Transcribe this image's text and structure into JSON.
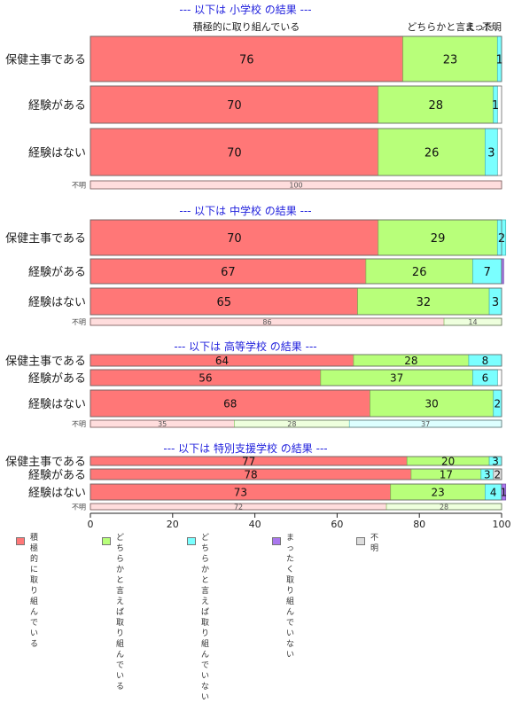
{
  "chart_data": {
    "type": "bar",
    "orientation": "horizontal",
    "stacked": true,
    "xlim": [
      0,
      100
    ],
    "x_ticks": [
      "0",
      "20",
      "40",
      "60",
      "80",
      "100"
    ],
    "top_header_labels": [
      "積極的に取り組んでいる",
      "どちらかと言え...",
      "まった..",
      "不明"
    ],
    "legend": [
      {
        "name": "積極的に\n取り組んでいる",
        "color": "#ff7777"
      },
      {
        "name": "どちらかと言えば\n取り組んでいる",
        "color": "#b8ff7a"
      },
      {
        "name": "どちらかと言えば\n取り組んでいない",
        "color": "#7affff"
      },
      {
        "name": "まったく\n取り組んでいない",
        "color": "#aa77ee"
      },
      {
        "name": "不明",
        "color": "#dddddd"
      }
    ],
    "panels": [
      {
        "title": "--- 以下は 小学校 の結果 ---",
        "rows": [
          {
            "label": "保健主事である",
            "values": [
              76,
              23,
              1,
              0,
              0
            ],
            "labels": [
              "76",
              "23",
              "1",
              "",
              ""
            ]
          },
          {
            "label": "経験がある",
            "values": [
              70,
              28,
              1,
              0,
              0
            ],
            "labels": [
              "70",
              "28",
              "1",
              "",
              ""
            ]
          },
          {
            "label": "経験はない",
            "values": [
              70,
              26,
              3,
              0,
              0
            ],
            "labels": [
              "70",
              "26",
              "3",
              "",
              ""
            ]
          }
        ],
        "unknown": {
          "label": "不明",
          "values": [
            100,
            0,
            0
          ],
          "labels": [
            "100",
            "",
            ""
          ]
        }
      },
      {
        "title": "--- 以下は 中学校 の結果 ---",
        "rows": [
          {
            "label": "保健主事である",
            "values": [
              70,
              29,
              2,
              0,
              0
            ],
            "labels": [
              "70",
              "29",
              "2",
              "",
              ""
            ]
          },
          {
            "label": "経験がある",
            "values": [
              67,
              26,
              7,
              0.5,
              0
            ],
            "labels": [
              "67",
              "26",
              "7",
              "",
              ""
            ]
          },
          {
            "label": "経験はない",
            "values": [
              65,
              32,
              3,
              0,
              0
            ],
            "labels": [
              "65",
              "32",
              "3",
              "",
              ""
            ]
          }
        ],
        "unknown": {
          "label": "不明",
          "values": [
            86,
            14,
            0
          ],
          "labels": [
            "86",
            "14",
            ""
          ]
        }
      },
      {
        "title": "--- 以下は 高等学校 の結果 ---",
        "rows": [
          {
            "label": "保健主事である",
            "values": [
              64,
              28,
              8,
              0,
              0
            ],
            "labels": [
              "64",
              "28",
              "8",
              "",
              ""
            ]
          },
          {
            "label": "経験がある",
            "values": [
              56,
              37,
              6,
              0,
              0
            ],
            "labels": [
              "56",
              "37",
              "6",
              "",
              ""
            ]
          },
          {
            "label": "経験はない",
            "values": [
              68,
              30,
              2,
              0,
              0
            ],
            "labels": [
              "68",
              "30",
              "2",
              "",
              ""
            ]
          }
        ],
        "unknown": {
          "label": "不明",
          "values": [
            35,
            28,
            37
          ],
          "labels": [
            "35",
            "28",
            "37"
          ]
        }
      },
      {
        "title": "--- 以下は 特別支援学校 の結果 ---",
        "rows": [
          {
            "label": "保健主事である",
            "values": [
              77,
              20,
              3,
              0,
              0
            ],
            "labels": [
              "77",
              "20",
              "3",
              "",
              ""
            ]
          },
          {
            "label": "経験がある",
            "values": [
              78,
              17,
              3,
              0,
              2
            ],
            "labels": [
              "78",
              "17",
              "3",
              "",
              "2"
            ]
          },
          {
            "label": "経験はない",
            "values": [
              73,
              23,
              4,
              1,
              0
            ],
            "labels": [
              "73",
              "23",
              "4",
              "1",
              ""
            ]
          }
        ],
        "unknown": {
          "label": "不明",
          "values": [
            72,
            28,
            0
          ],
          "labels": [
            "72",
            "28",
            ""
          ]
        }
      }
    ]
  }
}
